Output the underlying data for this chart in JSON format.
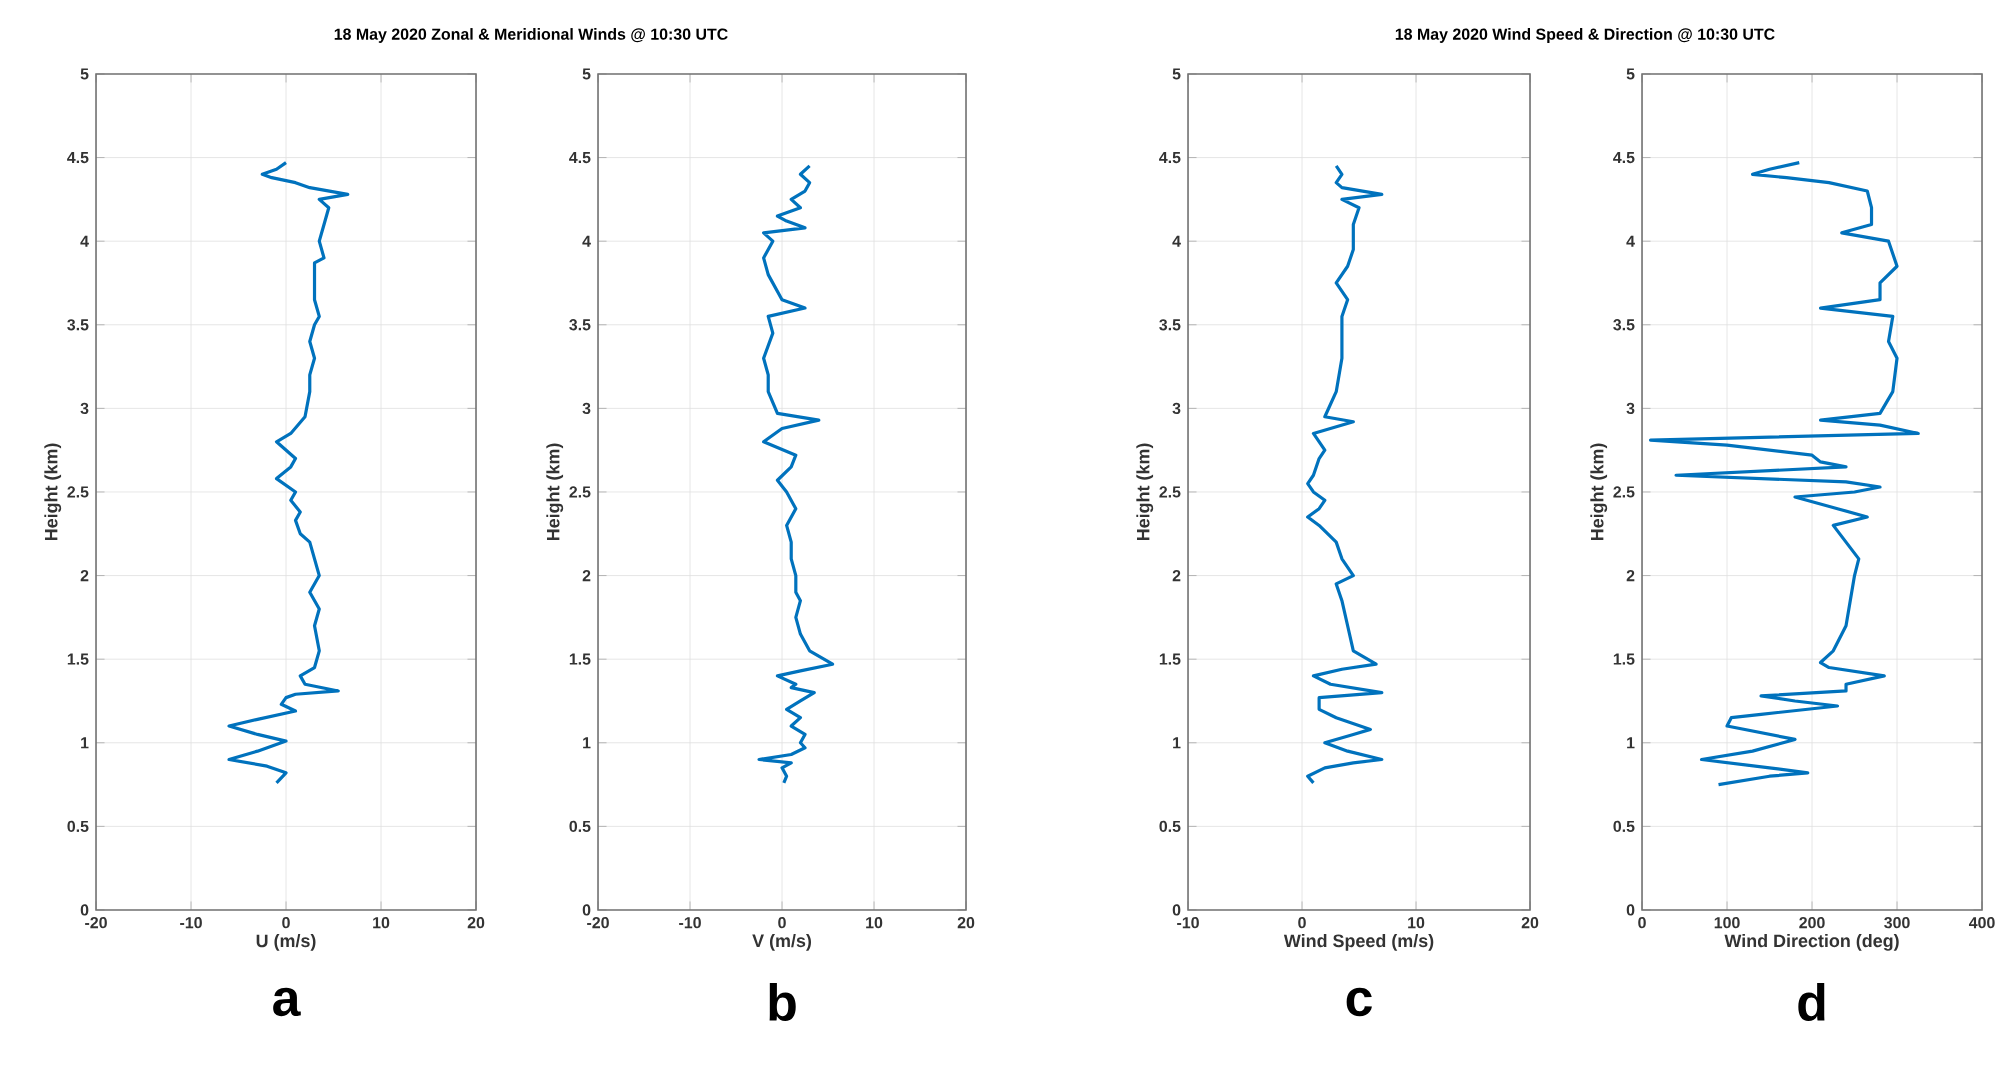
{
  "chart_data": [
    {
      "type": "line",
      "title": "18 May 2020 Zonal & Meridional Winds @ 10:30 UTC",
      "xlabel": "U (m/s)",
      "ylabel": "Height (km)",
      "xlim": [
        -20,
        20
      ],
      "xticks": [
        -20,
        -10,
        0,
        10,
        20
      ],
      "ylim": [
        0,
        5
      ],
      "yticks": [
        0,
        0.5,
        1,
        1.5,
        2,
        2.5,
        3,
        3.5,
        4,
        4.5,
        5
      ],
      "grid": true,
      "annotations": [
        "a"
      ],
      "series": [
        {
          "color": "#0072bd",
          "x": [
            -1,
            0,
            -2,
            -6,
            -3,
            0,
            -3,
            -6,
            -3,
            1,
            -0.5,
            0,
            1,
            5.5,
            2,
            1.5,
            3,
            3.5,
            3,
            3.5,
            2.5,
            3.5,
            2.5,
            1.5,
            1,
            1.5,
            0.5,
            1,
            -1,
            0.5,
            1,
            -1,
            0.5,
            2,
            2.5,
            2.5,
            3,
            2.5,
            3,
            3.5,
            3,
            3,
            4,
            3.5,
            4,
            4.5,
            3.5,
            6.5,
            2.5,
            1,
            -1.5,
            -2.5,
            -1,
            0
          ],
          "values": [
            0.76,
            0.82,
            0.86,
            0.9,
            0.95,
            1.01,
            1.05,
            1.1,
            1.14,
            1.19,
            1.23,
            1.27,
            1.29,
            1.31,
            1.35,
            1.4,
            1.45,
            1.55,
            1.7,
            1.8,
            1.9,
            2.0,
            2.2,
            2.25,
            2.33,
            2.38,
            2.45,
            2.5,
            2.58,
            2.65,
            2.7,
            2.8,
            2.85,
            2.95,
            3.1,
            3.2,
            3.3,
            3.4,
            3.5,
            3.55,
            3.65,
            3.87,
            3.9,
            4.0,
            4.1,
            4.2,
            4.25,
            4.28,
            4.32,
            4.35,
            4.38,
            4.4,
            4.43,
            4.47
          ]
        }
      ]
    },
    {
      "type": "line",
      "xlabel": "V (m/s)",
      "ylabel": "Height (km)",
      "xlim": [
        -20,
        20
      ],
      "xticks": [
        -20,
        -10,
        0,
        10,
        20
      ],
      "ylim": [
        0,
        5
      ],
      "yticks": [
        0,
        0.5,
        1,
        1.5,
        2,
        2.5,
        3,
        3.5,
        4,
        4.5,
        5
      ],
      "grid": true,
      "annotations": [
        "b"
      ],
      "series": [
        {
          "color": "#0072bd",
          "x": [
            0.2,
            0.5,
            0,
            1,
            -2.5,
            1,
            2.5,
            2,
            2.5,
            1,
            2,
            0.5,
            2,
            3.5,
            1,
            1.5,
            -0.5,
            2,
            5.5,
            3,
            2,
            1.5,
            2,
            1.5,
            1.5,
            1,
            1,
            0.5,
            1.5,
            0.5,
            -0.5,
            1,
            1.5,
            -2,
            0,
            4,
            -0.5,
            -1.5,
            -1.5,
            -2,
            -1,
            -1.5,
            2.5,
            0,
            -1.5,
            -2,
            -1,
            -2,
            2.5,
            0.5,
            -0.5,
            2,
            1,
            2.5,
            3,
            2,
            3
          ],
          "values": [
            0.76,
            0.8,
            0.85,
            0.88,
            0.9,
            0.93,
            0.97,
            1.0,
            1.05,
            1.1,
            1.15,
            1.2,
            1.25,
            1.3,
            1.33,
            1.35,
            1.4,
            1.43,
            1.47,
            1.55,
            1.65,
            1.75,
            1.85,
            1.9,
            2.0,
            2.1,
            2.2,
            2.3,
            2.4,
            2.5,
            2.57,
            2.65,
            2.72,
            2.8,
            2.88,
            2.93,
            2.97,
            3.1,
            3.2,
            3.3,
            3.45,
            3.55,
            3.6,
            3.65,
            3.8,
            3.9,
            4.0,
            4.05,
            4.08,
            4.12,
            4.15,
            4.2,
            4.25,
            4.3,
            4.35,
            4.4,
            4.45
          ]
        }
      ]
    },
    {
      "type": "line",
      "title": "18 May 2020  Wind Speed & Direction @ 10:30 UTC",
      "xlabel": "Wind Speed (m/s)",
      "ylabel": "Height (km)",
      "xlim": [
        -10,
        20
      ],
      "xticks": [
        -10,
        0,
        10,
        20
      ],
      "ylim": [
        0,
        5
      ],
      "yticks": [
        0,
        0.5,
        1,
        1.5,
        2,
        2.5,
        3,
        3.5,
        4,
        4.5,
        5
      ],
      "grid": true,
      "annotations": [
        "c"
      ],
      "series": [
        {
          "color": "#0072bd",
          "x": [
            1,
            0.5,
            2,
            4.5,
            7,
            4,
            2,
            4.5,
            6,
            3,
            1.5,
            1.5,
            7,
            2.5,
            1,
            3.5,
            6.5,
            4.5,
            4,
            3.5,
            3,
            4.5,
            3.5,
            3,
            1.5,
            0.5,
            1.5,
            2,
            1,
            0.5,
            1,
            1.5,
            2,
            1,
            4.5,
            2,
            3,
            3.5,
            3.5,
            4,
            3,
            4,
            4.5,
            4.5,
            5,
            3.5,
            7,
            3.5,
            3,
            3.5,
            3
          ],
          "values": [
            0.76,
            0.8,
            0.85,
            0.88,
            0.9,
            0.95,
            1.0,
            1.05,
            1.08,
            1.15,
            1.2,
            1.27,
            1.3,
            1.35,
            1.4,
            1.44,
            1.47,
            1.55,
            1.7,
            1.85,
            1.95,
            2.0,
            2.1,
            2.2,
            2.3,
            2.35,
            2.4,
            2.45,
            2.5,
            2.55,
            2.6,
            2.7,
            2.75,
            2.85,
            2.92,
            2.95,
            3.1,
            3.3,
            3.55,
            3.65,
            3.75,
            3.85,
            3.95,
            4.1,
            4.2,
            4.25,
            4.28,
            4.32,
            4.35,
            4.4,
            4.45
          ]
        }
      ]
    },
    {
      "type": "line",
      "xlabel": "Wind Direction (deg)",
      "ylabel": "Height (km)",
      "xlim": [
        0,
        400
      ],
      "xticks": [
        0,
        100,
        200,
        300,
        400
      ],
      "ylim": [
        0,
        5
      ],
      "yticks": [
        0,
        0.5,
        1,
        1.5,
        2,
        2.5,
        3,
        3.5,
        4,
        4.5,
        5
      ],
      "grid": true,
      "annotations": [
        "d"
      ],
      "series": [
        {
          "color": "#0072bd",
          "x": [
            90,
            150,
            195,
            150,
            70,
            130,
            180,
            100,
            105,
            140,
            230,
            180,
            140,
            240,
            240,
            285,
            220,
            210,
            225,
            240,
            245,
            250,
            255,
            240,
            225,
            265,
            230,
            180,
            250,
            280,
            240,
            40,
            240,
            210,
            200,
            100,
            10,
            325,
            280,
            210,
            280,
            295,
            300,
            290,
            295,
            210,
            280,
            280,
            300,
            290,
            235,
            270,
            270,
            265,
            220,
            170,
            130,
            150,
            185
          ],
          "values": [
            0.75,
            0.8,
            0.82,
            0.85,
            0.9,
            0.95,
            1.02,
            1.1,
            1.15,
            1.17,
            1.22,
            1.25,
            1.28,
            1.31,
            1.35,
            1.4,
            1.45,
            1.48,
            1.55,
            1.7,
            1.85,
            2.0,
            2.1,
            2.2,
            2.3,
            2.35,
            2.4,
            2.47,
            2.5,
            2.53,
            2.56,
            2.6,
            2.65,
            2.68,
            2.72,
            2.78,
            2.81,
            2.85,
            2.9,
            2.93,
            2.97,
            3.1,
            3.3,
            3.4,
            3.55,
            3.6,
            3.65,
            3.75,
            3.85,
            4.0,
            4.05,
            4.1,
            4.2,
            4.3,
            4.35,
            4.38,
            4.4,
            4.43,
            4.47
          ]
        }
      ]
    }
  ]
}
